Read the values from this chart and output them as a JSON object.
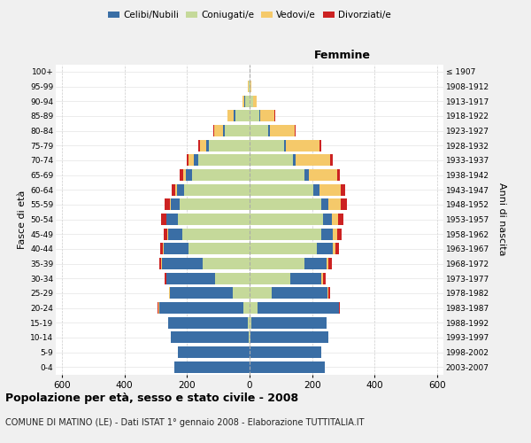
{
  "age_groups": [
    "0-4",
    "5-9",
    "10-14",
    "15-19",
    "20-24",
    "25-29",
    "30-34",
    "35-39",
    "40-44",
    "45-49",
    "50-54",
    "55-59",
    "60-64",
    "65-69",
    "70-74",
    "75-79",
    "80-84",
    "85-89",
    "90-94",
    "95-99",
    "100+"
  ],
  "birth_years": [
    "2003-2007",
    "1998-2002",
    "1993-1997",
    "1988-1992",
    "1983-1987",
    "1978-1982",
    "1973-1977",
    "1968-1972",
    "1963-1967",
    "1958-1962",
    "1953-1957",
    "1948-1952",
    "1943-1947",
    "1938-1942",
    "1933-1937",
    "1928-1932",
    "1923-1927",
    "1918-1922",
    "1913-1917",
    "1908-1912",
    "≤ 1907"
  ],
  "males": {
    "celibi": [
      240,
      230,
      250,
      255,
      270,
      200,
      155,
      130,
      80,
      45,
      35,
      28,
      22,
      18,
      14,
      8,
      4,
      5,
      2,
      0,
      0
    ],
    "coniugati": [
      0,
      0,
      2,
      5,
      20,
      55,
      110,
      150,
      195,
      215,
      230,
      225,
      210,
      185,
      165,
      130,
      80,
      45,
      15,
      3,
      0
    ],
    "vedovi": [
      0,
      0,
      0,
      0,
      2,
      2,
      2,
      2,
      2,
      2,
      2,
      3,
      5,
      10,
      15,
      20,
      30,
      20,
      5,
      2,
      0
    ],
    "divorziati": [
      0,
      0,
      0,
      0,
      2,
      2,
      5,
      8,
      10,
      12,
      15,
      15,
      12,
      10,
      8,
      5,
      2,
      0,
      0,
      0,
      0
    ]
  },
  "females": {
    "nubili": [
      240,
      230,
      250,
      240,
      260,
      180,
      100,
      70,
      50,
      35,
      28,
      22,
      18,
      14,
      8,
      5,
      4,
      5,
      2,
      0,
      0
    ],
    "coniugate": [
      0,
      0,
      2,
      5,
      25,
      70,
      130,
      175,
      215,
      230,
      235,
      230,
      205,
      175,
      140,
      110,
      60,
      30,
      10,
      3,
      0
    ],
    "vedove": [
      0,
      0,
      0,
      0,
      2,
      3,
      5,
      8,
      10,
      15,
      20,
      40,
      70,
      90,
      110,
      110,
      80,
      45,
      10,
      2,
      0
    ],
    "divorziate": [
      0,
      0,
      0,
      0,
      2,
      5,
      8,
      10,
      12,
      15,
      18,
      20,
      12,
      10,
      8,
      5,
      2,
      2,
      0,
      0,
      0
    ]
  },
  "colors": {
    "celibi": "#3a6ea5",
    "coniugati": "#c5d99a",
    "vedovi": "#f5c96a",
    "divorziati": "#cc2222"
  },
  "xlim": 620,
  "title": "Popolazione per età, sesso e stato civile - 2008",
  "subtitle": "COMUNE DI MATINO (LE) - Dati ISTAT 1° gennaio 2008 - Elaborazione TUTTITALIA.IT",
  "ylabel_left": "Fasce di età",
  "ylabel_right": "Anni di nascita",
  "bg_color": "#f0f0f0",
  "plot_bg": "#ffffff"
}
